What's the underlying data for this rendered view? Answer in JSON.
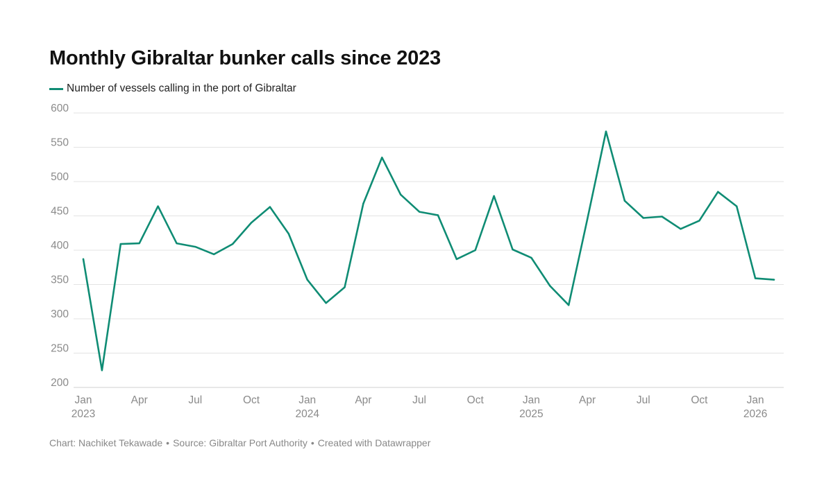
{
  "title": "Monthly Gibraltar bunker calls since 2023",
  "legend": {
    "label": "Number of vessels calling in the port of Gibraltar",
    "color": "#0f8c74"
  },
  "footer": {
    "byline": "Chart: Nachiket Tekawade",
    "source": "Source: Gibraltar Port Authority",
    "tool": "Created with Datawrapper"
  },
  "chart_data": {
    "type": "line",
    "title": "Monthly Gibraltar bunker calls since 2023",
    "xlabel": "",
    "ylabel": "",
    "ylim": [
      200,
      600
    ],
    "yticks": [
      200,
      250,
      300,
      350,
      400,
      450,
      500,
      550,
      600
    ],
    "grid": true,
    "legend_position": "top-left",
    "x": [
      "Jan 2023",
      "Feb 2023",
      "Mar 2023",
      "Apr 2023",
      "May 2023",
      "Jun 2023",
      "Jul 2023",
      "Aug 2023",
      "Sep 2023",
      "Oct 2023",
      "Nov 2023",
      "Dec 2023",
      "Jan 2024",
      "Feb 2024",
      "Mar 2024",
      "Apr 2024",
      "May 2024",
      "Jun 2024",
      "Jul 2024",
      "Aug 2024",
      "Sep 2024",
      "Oct 2024",
      "Nov 2024",
      "Dec 2024",
      "Jan 2025",
      "Feb 2025",
      "Mar 2025",
      "Apr 2025",
      "May 2025",
      "Jun 2025",
      "Jul 2025",
      "Aug 2025",
      "Sep 2025",
      "Oct 2025",
      "Nov 2025",
      "Dec 2025",
      "Jan 2026",
      "Feb 2026"
    ],
    "xtick_labels": [
      {
        "index": 0,
        "line1": "Jan",
        "line2": "2023"
      },
      {
        "index": 3,
        "line1": "Apr",
        "line2": ""
      },
      {
        "index": 6,
        "line1": "Jul",
        "line2": ""
      },
      {
        "index": 9,
        "line1": "Oct",
        "line2": ""
      },
      {
        "index": 12,
        "line1": "Jan",
        "line2": "2024"
      },
      {
        "index": 15,
        "line1": "Apr",
        "line2": ""
      },
      {
        "index": 18,
        "line1": "Jul",
        "line2": ""
      },
      {
        "index": 21,
        "line1": "Oct",
        "line2": ""
      },
      {
        "index": 24,
        "line1": "Jan",
        "line2": "2025"
      },
      {
        "index": 27,
        "line1": "Apr",
        "line2": ""
      },
      {
        "index": 30,
        "line1": "Jul",
        "line2": ""
      },
      {
        "index": 33,
        "line1": "Oct",
        "line2": ""
      },
      {
        "index": 36,
        "line1": "Jan",
        "line2": "2026"
      }
    ],
    "series": [
      {
        "name": "Number of vessels calling in the port of Gibraltar",
        "color": "#0f8c74",
        "values": [
          387,
          225,
          409,
          410,
          464,
          410,
          405,
          394,
          409,
          440,
          463,
          424,
          357,
          323,
          346,
          468,
          535,
          481,
          456,
          451,
          387,
          400,
          479,
          401,
          389,
          348,
          320,
          445,
          573,
          472,
          447,
          449,
          431,
          443,
          485,
          464,
          359,
          357
        ]
      }
    ]
  }
}
